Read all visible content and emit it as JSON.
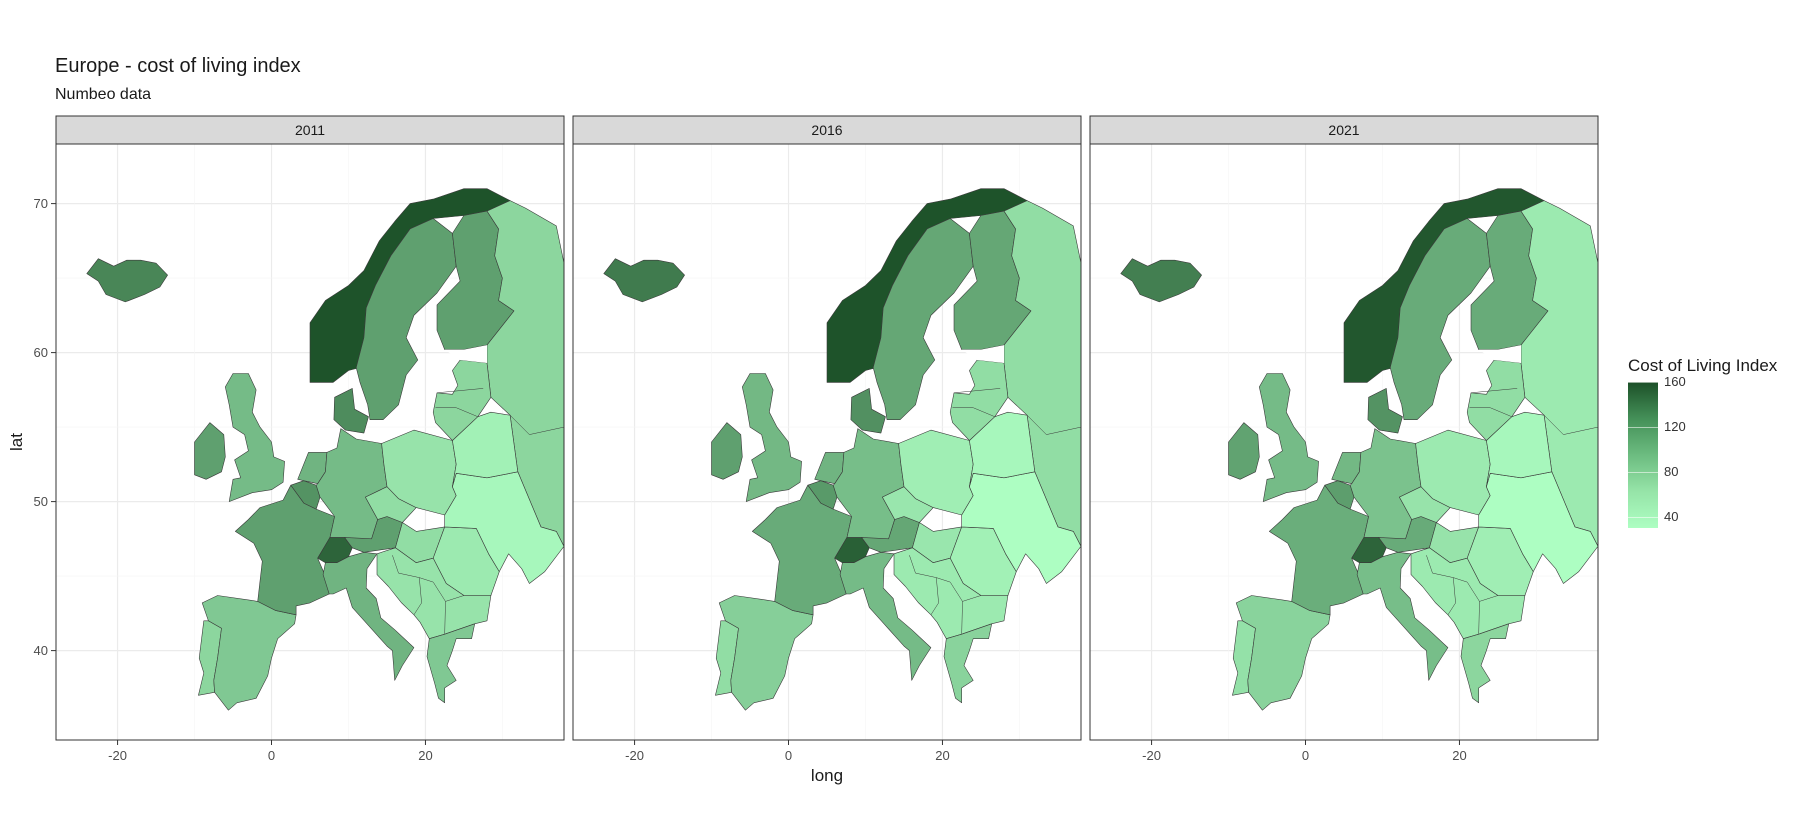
{
  "title": "Europe - cost of living index",
  "subtitle": "Numbeo data",
  "axes": {
    "x_label": "long",
    "y_label": "lat",
    "x_ticks": [
      -20,
      0,
      20
    ],
    "y_ticks": [
      40,
      50,
      60,
      70
    ],
    "x_range": [
      -28,
      38
    ],
    "y_range": [
      34,
      74
    ]
  },
  "panels": [
    {
      "label": "2011",
      "index": {
        "iceland": 120,
        "norway": 158,
        "sweden": 100,
        "finland": 100,
        "russia": 60,
        "ireland": 100,
        "uk": 80,
        "france": 100,
        "spain": 70,
        "portugal": 60,
        "italy": 85,
        "germany": 80,
        "netherlands": 85,
        "belgium": 110,
        "switzerland": 145,
        "austria": 100,
        "denmark": 115,
        "poland": 50,
        "czechia": 55,
        "hungary": 55,
        "romania": 45,
        "ukraine": 35,
        "belarus": 40,
        "baltics": 60,
        "balkans": 50,
        "greece": 70
      }
    },
    {
      "label": "2016",
      "index": {
        "iceland": 128,
        "norway": 158,
        "sweden": 95,
        "finland": 95,
        "russia": 55,
        "ireland": 100,
        "uk": 82,
        "france": 92,
        "spain": 65,
        "portugal": 55,
        "italy": 80,
        "germany": 78,
        "netherlands": 85,
        "belgium": 105,
        "switzerland": 148,
        "austria": 95,
        "denmark": 112,
        "poland": 42,
        "czechia": 48,
        "hungary": 48,
        "romania": 40,
        "ukraine": 30,
        "belarus": 35,
        "baltics": 55,
        "balkans": 45,
        "greece": 62
      }
    },
    {
      "label": "2021",
      "index": {
        "iceland": 125,
        "norway": 155,
        "sweden": 92,
        "finland": 92,
        "russia": 45,
        "ireland": 98,
        "uk": 80,
        "france": 90,
        "spain": 62,
        "portugal": 52,
        "italy": 78,
        "germany": 75,
        "netherlands": 82,
        "belgium": 102,
        "switzerland": 145,
        "austria": 92,
        "denmark": 110,
        "poland": 45,
        "czechia": 50,
        "hungary": 50,
        "romania": 42,
        "ukraine": 30,
        "belarus": 35,
        "baltics": 55,
        "balkans": 45,
        "greece": 60
      }
    }
  ],
  "legend": {
    "title": "Cost of Living Index",
    "ticks": [
      160,
      120,
      80,
      40
    ],
    "range": [
      30,
      160
    ],
    "color_low": "#adfec2",
    "color_high": "#1c5028"
  }
}
